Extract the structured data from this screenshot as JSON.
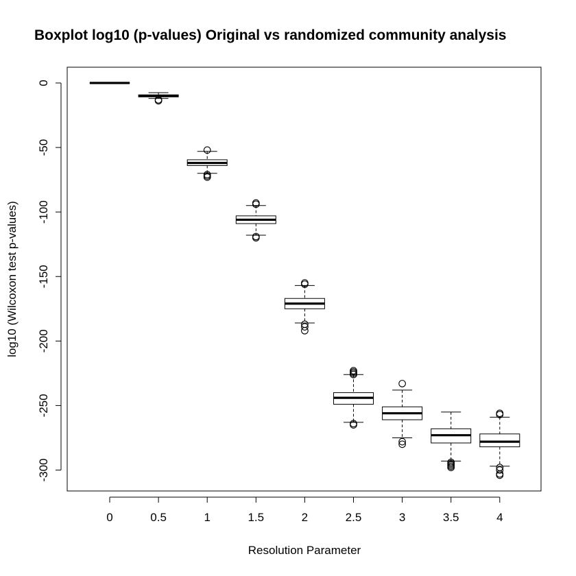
{
  "chart_data": {
    "type": "boxplot",
    "title": "Boxplot log10 (p-values) Original vs randomized community analysis",
    "xlabel": "Resolution Parameter",
    "ylabel": "log10 (Wilcoxon test p-values)",
    "ylim": [
      -315,
      12
    ],
    "y_ticks": [
      0,
      -50,
      -100,
      -150,
      -200,
      -250,
      -300
    ],
    "categories": [
      "0",
      "0.5",
      "1",
      "1.5",
      "2",
      "2.5",
      "3",
      "3.5",
      "4"
    ],
    "boxes": [
      {
        "category": "0",
        "whisker_low": 0,
        "q1": 0,
        "median": 0,
        "q3": 0,
        "whisker_high": 0,
        "outliers": []
      },
      {
        "category": "0.5",
        "whisker_low": -12,
        "q1": -10.8,
        "median": -10,
        "q3": -9.2,
        "whisker_high": -7.5,
        "outliers": [
          -13,
          -13.8
        ]
      },
      {
        "category": "1",
        "whisker_low": -70,
        "q1": -64,
        "median": -62,
        "q3": -59.5,
        "whisker_high": -53,
        "outliers": [
          -52,
          -71,
          -72,
          -73
        ]
      },
      {
        "category": "1.5",
        "whisker_low": -118,
        "q1": -109,
        "median": -106,
        "q3": -103,
        "whisker_high": -95,
        "outliers": [
          -93,
          -94,
          -119,
          -120
        ]
      },
      {
        "category": "2",
        "whisker_low": -186,
        "q1": -175,
        "median": -171,
        "q3": -167,
        "whisker_high": -157,
        "outliers": [
          -155,
          -156,
          -187,
          -189,
          -192
        ]
      },
      {
        "category": "2.5",
        "whisker_low": -263,
        "q1": -249,
        "median": -244,
        "q3": -240,
        "whisker_high": -226,
        "outliers": [
          -223,
          -224,
          -225,
          -226,
          -264,
          -265
        ]
      },
      {
        "category": "3",
        "whisker_low": -275,
        "q1": -261,
        "median": -256,
        "q3": -251,
        "whisker_high": -238,
        "outliers": [
          -233,
          -278,
          -280
        ]
      },
      {
        "category": "3.5",
        "whisker_low": -293,
        "q1": -279,
        "median": -273,
        "q3": -268,
        "whisker_high": -255,
        "outliers": [
          -294,
          -295,
          -296,
          -297,
          -298
        ]
      },
      {
        "category": "4",
        "whisker_low": -297,
        "q1": -282,
        "median": -278,
        "q3": -272,
        "whisker_high": -259,
        "outliers": [
          -256,
          -257,
          -298,
          -300,
          -303,
          -304
        ]
      }
    ],
    "colors": {
      "box_fill": "#ffffff",
      "stroke": "#000000"
    }
  }
}
